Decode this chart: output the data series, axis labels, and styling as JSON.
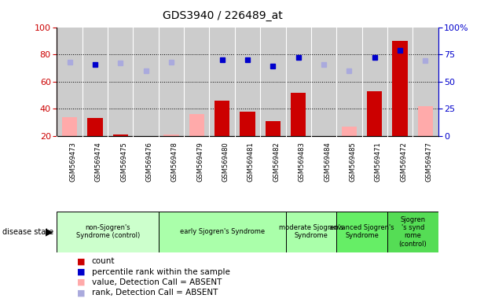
{
  "title": "GDS3940 / 226489_at",
  "samples": [
    "GSM569473",
    "GSM569474",
    "GSM569475",
    "GSM569476",
    "GSM569478",
    "GSM569479",
    "GSM569480",
    "GSM569481",
    "GSM569482",
    "GSM569483",
    "GSM569484",
    "GSM569485",
    "GSM569471",
    "GSM569472",
    "GSM569477"
  ],
  "count": [
    null,
    33,
    21,
    null,
    null,
    null,
    46,
    38,
    31,
    52,
    null,
    null,
    53,
    90,
    null
  ],
  "count_absent": [
    34,
    null,
    null,
    null,
    21,
    36,
    null,
    null,
    null,
    null,
    null,
    27,
    null,
    null,
    42
  ],
  "rank": [
    null,
    66,
    null,
    null,
    null,
    null,
    70,
    70,
    64,
    72,
    null,
    null,
    72,
    79,
    null
  ],
  "rank_absent": [
    68,
    null,
    67,
    60,
    68,
    null,
    null,
    null,
    null,
    null,
    66,
    60,
    null,
    null,
    69
  ],
  "group_bounds": [
    {
      "label": "non-Sjogren's\nSyndrome (control)",
      "start": 0,
      "end": 4,
      "color": "#ccffcc"
    },
    {
      "label": "early Sjogren's Syndrome",
      "start": 4,
      "end": 9,
      "color": "#aaffaa"
    },
    {
      "label": "moderate Sjogren's\nSyndrome",
      "start": 9,
      "end": 11,
      "color": "#aaffaa"
    },
    {
      "label": "advanced Sjogren's\nSyndrome",
      "start": 11,
      "end": 13,
      "color": "#66ee66"
    },
    {
      "label": "Sjogren\n's synd\nrome\n(control)",
      "start": 13,
      "end": 15,
      "color": "#55dd55"
    }
  ],
  "ylim_left": [
    20,
    100
  ],
  "ylim_right": [
    0,
    100
  ],
  "bar_color_count": "#cc0000",
  "bar_color_absent": "#ffaaaa",
  "dot_color_rank": "#0000cc",
  "dot_color_rank_absent": "#aaaadd",
  "bg_color": "#cccccc",
  "left_axis_color": "#cc0000",
  "right_axis_color": "#0000cc",
  "legend_items": [
    {
      "color": "#cc0000",
      "label": "count",
      "shape": "square"
    },
    {
      "color": "#0000cc",
      "label": "percentile rank within the sample",
      "shape": "square"
    },
    {
      "color": "#ffaaaa",
      "label": "value, Detection Call = ABSENT",
      "shape": "square"
    },
    {
      "color": "#aaaadd",
      "label": "rank, Detection Call = ABSENT",
      "shape": "square"
    }
  ]
}
